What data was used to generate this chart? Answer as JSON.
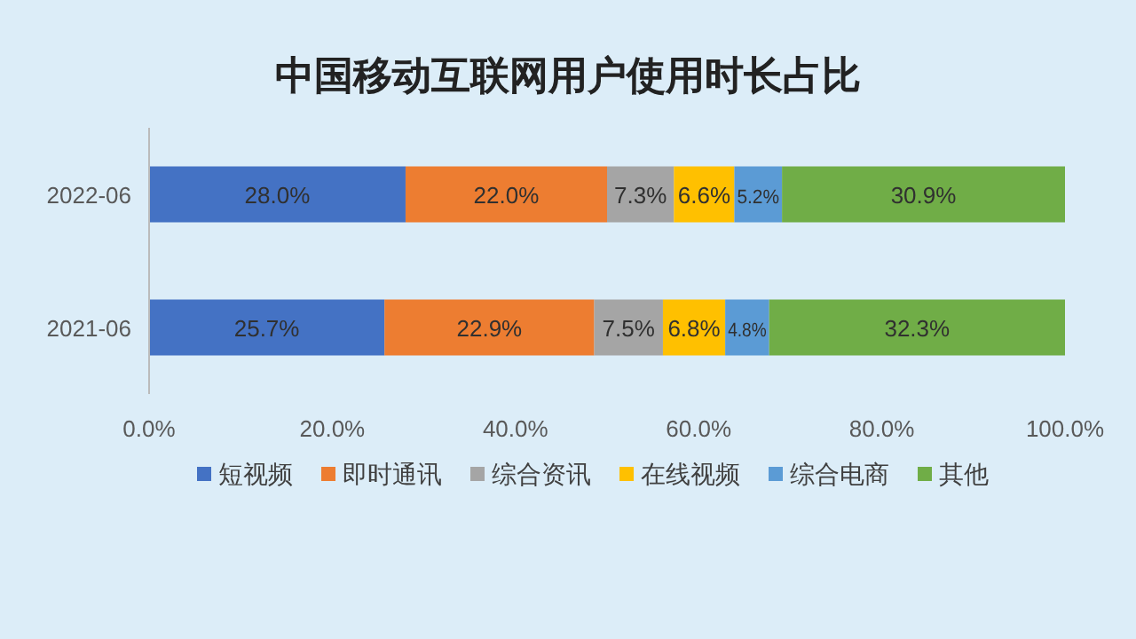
{
  "chart_data": {
    "type": "bar",
    "orientation": "horizontal",
    "stacked": true,
    "title": "中国移动互联网用户使用时长占比",
    "categories": [
      "2022-06",
      "2021-06"
    ],
    "series": [
      {
        "name": "短视频",
        "color": "#4472c4",
        "values": [
          28.0,
          25.7
        ],
        "value_labels": [
          "28.0%",
          "25.7%"
        ]
      },
      {
        "name": "即时通讯",
        "color": "#ed7d31",
        "values": [
          22.0,
          22.9
        ],
        "value_labels": [
          "22.0%",
          "22.9%"
        ]
      },
      {
        "name": "综合资讯",
        "color": "#a5a5a5",
        "values": [
          7.3,
          7.5
        ],
        "value_labels": [
          "7.3%",
          "7.5%"
        ]
      },
      {
        "name": "在线视频",
        "color": "#ffc000",
        "values": [
          6.6,
          6.8
        ],
        "value_labels": [
          "6.6%",
          "6.8%"
        ]
      },
      {
        "name": "综合电商",
        "color": "#5b9bd5",
        "values": [
          5.2,
          4.8
        ],
        "value_labels": [
          "5.2%",
          "4.8%"
        ]
      },
      {
        "name": "其他",
        "color": "#70ad47",
        "values": [
          30.9,
          32.3
        ],
        "value_labels": [
          "30.9%",
          "32.3%"
        ]
      }
    ],
    "xlim": [
      0,
      100
    ],
    "xticks": [
      {
        "value": 0,
        "label": "0.0%"
      },
      {
        "value": 20,
        "label": "20.0%"
      },
      {
        "value": 40,
        "label": "40.0%"
      },
      {
        "value": 60,
        "label": "60.0%"
      },
      {
        "value": 80,
        "label": "80.0%"
      },
      {
        "value": 100,
        "label": "100.0%"
      }
    ],
    "grid": false,
    "legend": "bottom"
  }
}
